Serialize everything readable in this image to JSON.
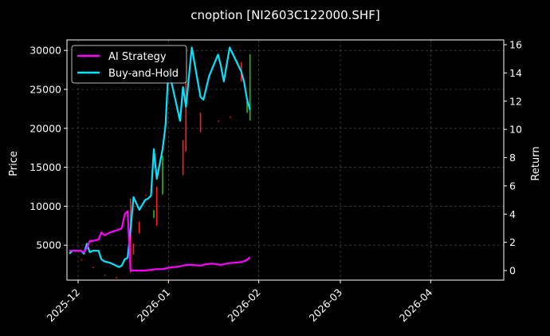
{
  "chart_data": {
    "type": "line",
    "title": "cnoption [NI2603C122000.SHF]",
    "xlabel": "",
    "ylabel": "Price",
    "ylabel_right": "Return",
    "background": "#000000",
    "grid": true,
    "legend_position": "upper left",
    "x_ticks": [
      "2025-12",
      "2026-01",
      "2026-02",
      "2026-03",
      "2026-04"
    ],
    "y_ticks_left": [
      5000,
      10000,
      15000,
      20000,
      25000,
      30000
    ],
    "y_ticks_right": [
      0,
      2,
      4,
      6,
      8,
      10,
      12,
      14,
      16
    ],
    "ylim_left": [
      500,
      31000
    ],
    "ylim_right": [
      -0.6,
      16.2
    ],
    "series": [
      {
        "name": "AI Strategy",
        "axis": "right",
        "color": "#ff00ff",
        "x": [
          "2025-11-28",
          "2025-11-29",
          "2025-12-01",
          "2025-12-02",
          "2025-12-03",
          "2025-12-04",
          "2025-12-05",
          "2025-12-06",
          "2025-12-08",
          "2025-12-09",
          "2025-12-10",
          "2025-12-11",
          "2025-12-12",
          "2025-12-15",
          "2025-12-16",
          "2025-12-17",
          "2025-12-18",
          "2025-12-19",
          "2025-12-20",
          "2025-12-22",
          "2025-12-24",
          "2025-12-26",
          "2025-12-28",
          "2025-12-30",
          "2026-01-01",
          "2026-01-03",
          "2026-01-05",
          "2026-01-07",
          "2026-01-09",
          "2026-01-12",
          "2026-01-14",
          "2026-01-16",
          "2026-01-19",
          "2026-01-21",
          "2026-01-23",
          "2026-01-26",
          "2026-01-28",
          "2026-01-29"
        ],
        "values": [
          1.4,
          1.4,
          1.4,
          1.4,
          1.3,
          1.6,
          2.1,
          2.1,
          2.2,
          2.7,
          2.5,
          2.6,
          2.7,
          2.9,
          3.0,
          4.0,
          4.2,
          0.0,
          0.0,
          0.0,
          0.0,
          0.05,
          0.1,
          0.1,
          0.2,
          0.25,
          0.3,
          0.4,
          0.4,
          0.35,
          0.45,
          0.5,
          0.4,
          0.5,
          0.55,
          0.6,
          0.75,
          0.95
        ]
      },
      {
        "name": "Buy-and-Hold",
        "axis": "right",
        "color": "#00e5ff",
        "x": [
          "2025-11-28",
          "2025-11-29",
          "2025-12-01",
          "2025-12-02",
          "2025-12-03",
          "2025-12-04",
          "2025-12-05",
          "2025-12-06",
          "2025-12-08",
          "2025-12-09",
          "2025-12-10",
          "2025-12-11",
          "2025-12-12",
          "2025-12-15",
          "2025-12-16",
          "2025-12-17",
          "2025-12-18",
          "2025-12-19",
          "2025-12-20",
          "2025-12-22",
          "2025-12-24",
          "2025-12-25",
          "2025-12-26",
          "2025-12-27",
          "2025-12-28",
          "2025-12-30",
          "2025-12-31",
          "2026-01-01",
          "2026-01-05",
          "2026-01-06",
          "2026-01-07",
          "2026-01-09",
          "2026-01-12",
          "2026-01-13",
          "2026-01-15",
          "2026-01-18",
          "2026-01-19",
          "2026-01-20",
          "2026-01-22",
          "2026-01-26",
          "2026-01-27",
          "2026-01-28",
          "2026-01-29"
        ],
        "values": [
          1.2,
          1.4,
          1.4,
          1.4,
          1.2,
          1.9,
          1.3,
          1.4,
          1.4,
          0.8,
          0.65,
          0.6,
          0.55,
          0.25,
          0.35,
          0.8,
          0.9,
          2.9,
          5.2,
          4.3,
          5.0,
          5.1,
          5.3,
          8.6,
          6.5,
          8.6,
          10.3,
          14.3,
          10.6,
          13.0,
          11.6,
          15.8,
          12.3,
          12.1,
          13.8,
          15.3,
          14.5,
          13.4,
          15.8,
          14.1,
          13.3,
          12.1,
          11.4
        ]
      }
    ],
    "candles_note": "Red/green OHLC-like vertical bars plotted on Price axis between 2025-12-19 and 2026-01-29"
  },
  "legend": {
    "items": [
      {
        "label": "AI Strategy",
        "color": "#ff00ff"
      },
      {
        "label": "Buy-and-Hold",
        "color": "#00e5ff"
      }
    ]
  }
}
